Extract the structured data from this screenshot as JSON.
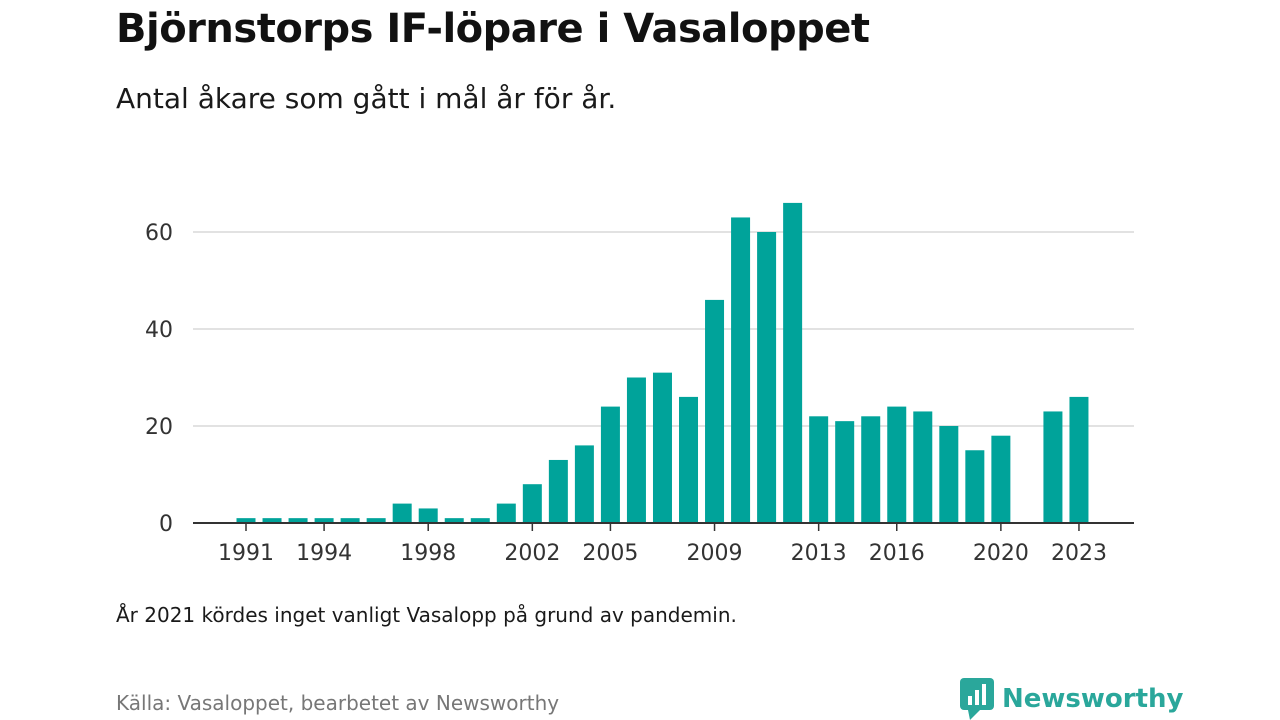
{
  "header": {
    "title": "Björnstorps IF-löpare i Vasaloppet",
    "subtitle": "Antal åkare som gått i mål år för år."
  },
  "footer": {
    "note": "År 2021 kördes inget vanligt Vasalopp på grund av pandemin.",
    "source": "Källa: Vasaloppet, bearbetet av Newsworthy",
    "brand": "Newsworthy",
    "brand_icon": "bar-chart-speech-bubble-icon"
  },
  "colors": {
    "bar": "#00a39a",
    "grid": "#d9d9d9",
    "axis": "#333333",
    "brand": "#2aa79b"
  },
  "chart_data": {
    "type": "bar",
    "title": "Björnstorps IF-löpare i Vasaloppet",
    "subtitle": "Antal åkare som gått i mål år för år.",
    "xlabel": "",
    "ylabel": "",
    "categories": [
      1991,
      1992,
      1993,
      1994,
      1995,
      1996,
      1997,
      1998,
      1999,
      2000,
      2001,
      2002,
      2003,
      2004,
      2005,
      2006,
      2007,
      2008,
      2009,
      2010,
      2011,
      2012,
      2013,
      2014,
      2015,
      2016,
      2017,
      2018,
      2019,
      2020,
      2021,
      2022,
      2023
    ],
    "values": [
      1,
      1,
      1,
      1,
      1,
      1,
      4,
      3,
      1,
      1,
      4,
      8,
      13,
      16,
      24,
      30,
      31,
      26,
      46,
      63,
      60,
      66,
      22,
      21,
      22,
      24,
      23,
      20,
      15,
      18,
      0,
      23,
      26
    ],
    "x_tick_labels": [
      "1991",
      "1994",
      "1998",
      "2002",
      "2005",
      "2009",
      "2013",
      "2016",
      "2020",
      "2023"
    ],
    "y_ticks": [
      0,
      20,
      40,
      60
    ],
    "ylim": [
      0,
      68
    ],
    "grid": true,
    "legend": "none"
  }
}
